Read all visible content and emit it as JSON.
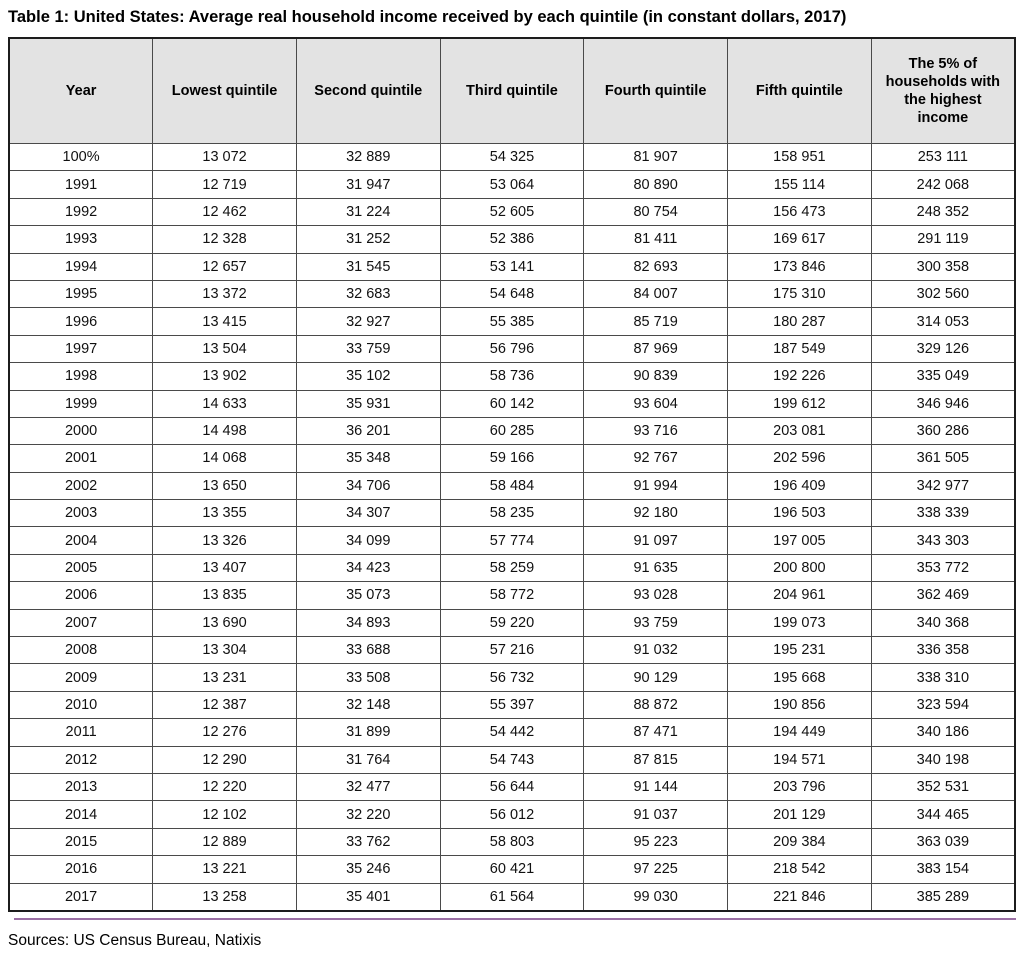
{
  "page": {
    "title": "Table 1: United States: Average real household income received by each quintile (in constant dollars, 2017)",
    "source": "Sources: US Census Bureau, Natixis"
  },
  "colors": {
    "header_bg": "#e3e3e3",
    "grid_line": "#4a4a4a",
    "outer_border": "#1c1c1c",
    "accent_line": "#9b6fa4"
  },
  "chart_data": {
    "type": "table",
    "title": "Table 1: United States: Average real household income received by each quintile (in constant dollars, 2017)",
    "columns": [
      "Year",
      "Lowest quintile",
      "Second quintile",
      "Third quintile",
      "Fourth quintile",
      "Fifth quintile",
      "The 5% of households with the highest income"
    ],
    "rows": [
      [
        "100%",
        "13 072",
        "32 889",
        "54 325",
        "81 907",
        "158 951",
        "253 111"
      ],
      [
        "1991",
        "12 719",
        "31 947",
        "53 064",
        "80 890",
        "155 114",
        "242 068"
      ],
      [
        "1992",
        "12 462",
        "31 224",
        "52 605",
        "80 754",
        "156 473",
        "248 352"
      ],
      [
        "1993",
        "12 328",
        "31 252",
        "52 386",
        "81 411",
        "169 617",
        "291 119"
      ],
      [
        "1994",
        "12 657",
        "31 545",
        "53 141",
        "82 693",
        "173 846",
        "300 358"
      ],
      [
        "1995",
        "13 372",
        "32 683",
        "54 648",
        "84 007",
        "175 310",
        "302 560"
      ],
      [
        "1996",
        "13 415",
        "32 927",
        "55 385",
        "85 719",
        "180 287",
        "314 053"
      ],
      [
        "1997",
        "13 504",
        "33 759",
        "56 796",
        "87 969",
        "187 549",
        "329 126"
      ],
      [
        "1998",
        "13 902",
        "35 102",
        "58 736",
        "90 839",
        "192 226",
        "335 049"
      ],
      [
        "1999",
        "14 633",
        "35 931",
        "60 142",
        "93 604",
        "199 612",
        "346 946"
      ],
      [
        "2000",
        "14 498",
        "36 201",
        "60 285",
        "93 716",
        "203 081",
        "360 286"
      ],
      [
        "2001",
        "14 068",
        "35 348",
        "59 166",
        "92 767",
        "202 596",
        "361 505"
      ],
      [
        "2002",
        "13 650",
        "34 706",
        "58 484",
        "91 994",
        "196 409",
        "342 977"
      ],
      [
        "2003",
        "13 355",
        "34 307",
        "58 235",
        "92 180",
        "196 503",
        "338 339"
      ],
      [
        "2004",
        "13 326",
        "34 099",
        "57 774",
        "91 097",
        "197 005",
        "343 303"
      ],
      [
        "2005",
        "13 407",
        "34 423",
        "58 259",
        "91 635",
        "200 800",
        "353 772"
      ],
      [
        "2006",
        "13 835",
        "35 073",
        "58 772",
        "93 028",
        "204 961",
        "362 469"
      ],
      [
        "2007",
        "13 690",
        "34 893",
        "59 220",
        "93 759",
        "199 073",
        "340 368"
      ],
      [
        "2008",
        "13 304",
        "33 688",
        "57 216",
        "91 032",
        "195 231",
        "336 358"
      ],
      [
        "2009",
        "13 231",
        "33 508",
        "56 732",
        "90 129",
        "195 668",
        "338 310"
      ],
      [
        "2010",
        "12 387",
        "32 148",
        "55 397",
        "88 872",
        "190 856",
        "323 594"
      ],
      [
        "2011",
        "12 276",
        "31 899",
        "54 442",
        "87 471",
        "194 449",
        "340 186"
      ],
      [
        "2012",
        "12 290",
        "31 764",
        "54 743",
        "87 815",
        "194 571",
        "340 198"
      ],
      [
        "2013",
        "12 220",
        "32 477",
        "56 644",
        "91 144",
        "203 796",
        "352 531"
      ],
      [
        "2014",
        "12 102",
        "32 220",
        "56 012",
        "91 037",
        "201 129",
        "344 465"
      ],
      [
        "2015",
        "12 889",
        "33 762",
        "58 803",
        "95 223",
        "209 384",
        "363 039"
      ],
      [
        "2016",
        "13 221",
        "35 246",
        "60 421",
        "97 225",
        "218 542",
        "383 154"
      ],
      [
        "2017",
        "13 258",
        "35 401",
        "61 564",
        "99 030",
        "221 846",
        "385 289"
      ]
    ],
    "source": "Sources: US Census Bureau, Natixis",
    "layout": {
      "grid": "on",
      "header_background": "#e3e3e3",
      "number_format": "space thousands separator"
    }
  }
}
